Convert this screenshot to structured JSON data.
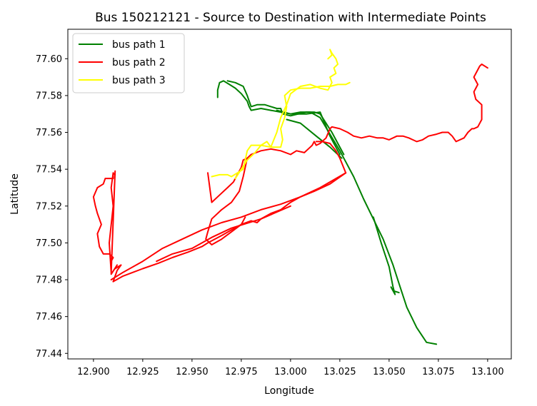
{
  "chart_data": {
    "type": "line",
    "title": "Bus 150212121 - Source to Destination with Intermediate Points",
    "xlabel": "Longitude",
    "ylabel": "Latitude",
    "xlim": [
      12.887,
      13.112
    ],
    "ylim": [
      77.437,
      77.616
    ],
    "xticks": [
      "12.900",
      "12.925",
      "12.950",
      "12.975",
      "13.000",
      "13.025",
      "13.050",
      "13.075",
      "13.100"
    ],
    "yticks": [
      "77.44",
      "77.46",
      "77.48",
      "77.50",
      "77.52",
      "77.54",
      "77.56",
      "77.58",
      "77.60"
    ],
    "legend": {
      "placement": "upper-left"
    },
    "grid": false,
    "series": [
      {
        "name": "bus path 1",
        "color": "#008000",
        "x": [
          12.963,
          12.963,
          12.964,
          12.966,
          12.969,
          12.972,
          12.975,
          12.978,
          12.979,
          12.98,
          12.985,
          12.99,
          12.995,
          13.0,
          13.005,
          13.01,
          13.015,
          13.02,
          13.025,
          13.028,
          13.032,
          13.037,
          13.042,
          13.047,
          13.052,
          13.055,
          13.059,
          13.064,
          13.069,
          13.074
        ],
        "y": [
          77.579,
          77.583,
          77.587,
          77.588,
          77.586,
          77.584,
          77.581,
          77.577,
          77.574,
          77.572,
          77.573,
          77.572,
          77.571,
          77.57,
          77.571,
          77.571,
          77.568,
          77.559,
          77.55,
          77.544,
          77.536,
          77.524,
          77.513,
          77.502,
          77.488,
          77.478,
          77.465,
          77.454,
          77.446,
          77.445
        ]
      },
      {
        "name": "bus path 1",
        "color": "#008000",
        "x": [
          12.968,
          12.972,
          12.976,
          12.978,
          12.98,
          12.983,
          12.985,
          12.987,
          12.99,
          12.993,
          12.995,
          12.996,
          13.0,
          13.004,
          13.008,
          13.012,
          13.015,
          13.021,
          13.027
        ],
        "y": [
          77.588,
          77.587,
          77.585,
          77.58,
          77.574,
          77.575,
          77.575,
          77.575,
          77.574,
          77.573,
          77.573,
          77.57,
          77.569,
          77.57,
          77.571,
          77.571,
          77.57,
          77.56,
          77.548
        ]
      },
      {
        "name": "bus path 1",
        "color": "#008000",
        "x": [
          12.993,
          13.0,
          13.008,
          13.015,
          13.02,
          13.025
        ],
        "y": [
          77.572,
          77.57,
          77.57,
          77.571,
          77.558,
          77.548
        ]
      },
      {
        "name": "bus path 1",
        "color": "#008000",
        "x": [
          13.042,
          13.046,
          13.05,
          13.052,
          13.053,
          13.051,
          13.052,
          13.055
        ],
        "y": [
          77.514,
          77.5,
          77.487,
          77.476,
          77.472,
          77.476,
          77.474,
          77.473
        ]
      },
      {
        "name": "bus path 1",
        "color": "#008000",
        "x": [
          12.998,
          13.005,
          13.013,
          13.02,
          13.026
        ],
        "y": [
          77.567,
          77.565,
          77.558,
          77.552,
          77.546
        ]
      },
      {
        "name": "bus path 2",
        "color": "#ff0000",
        "x": [
          13.1,
          13.097,
          13.096,
          13.093,
          13.095,
          13.093,
          13.094,
          13.097,
          13.097,
          13.095,
          13.093,
          13.092,
          13.09,
          13.088,
          13.084,
          13.082,
          13.08,
          13.077,
          13.074,
          13.07,
          13.067,
          13.064,
          13.062,
          13.06,
          13.057,
          13.054,
          13.05,
          13.047,
          13.044,
          13.04,
          13.036,
          13.032,
          13.029,
          13.025,
          13.021,
          13.02,
          13.018,
          13.015,
          13.013,
          13.012,
          13.011,
          13.01,
          13.007,
          13.003,
          13.0,
          12.995,
          12.99,
          12.985,
          12.98,
          12.978,
          12.976,
          12.975,
          12.973,
          12.971,
          12.968,
          12.964,
          12.96,
          12.958
        ],
        "y": [
          77.595,
          77.597,
          77.596,
          77.59,
          77.586,
          77.582,
          77.578,
          77.575,
          77.567,
          77.563,
          77.562,
          77.562,
          77.56,
          77.557,
          77.555,
          77.558,
          77.56,
          77.56,
          77.559,
          77.558,
          77.556,
          77.555,
          77.556,
          77.557,
          77.558,
          77.558,
          77.556,
          77.557,
          77.557,
          77.558,
          77.557,
          77.558,
          77.56,
          77.562,
          77.563,
          77.562,
          77.557,
          77.554,
          77.553,
          77.555,
          77.553,
          77.552,
          77.549,
          77.55,
          77.548,
          77.55,
          77.551,
          77.55,
          77.548,
          77.546,
          77.545,
          77.541,
          77.537,
          77.533,
          77.53,
          77.526,
          77.522,
          77.538
        ]
      },
      {
        "name": "bus path 2",
        "color": "#ff0000",
        "x": [
          12.978,
          12.976,
          12.974,
          12.97,
          12.965,
          12.96,
          12.958,
          12.957,
          12.96,
          12.965,
          12.97,
          12.975,
          12.977
        ],
        "y": [
          77.546,
          77.536,
          77.528,
          77.522,
          77.518,
          77.513,
          77.506,
          77.502,
          77.499,
          77.502,
          77.506,
          77.51,
          77.514
        ]
      },
      {
        "name": "bus path 2",
        "color": "#ff0000",
        "x": [
          13.013,
          13.016,
          13.02,
          13.023,
          13.025,
          13.028
        ],
        "y": [
          77.555,
          77.555,
          77.554,
          77.55,
          77.546,
          77.538
        ]
      },
      {
        "name": "bus path 2",
        "color": "#ff0000",
        "x": [
          13.028,
          13.02,
          13.012,
          13.005,
          13.0,
          12.995,
          12.99,
          12.985,
          12.983,
          12.98,
          12.975,
          12.97,
          12.965,
          12.958,
          12.955,
          12.948,
          12.94,
          12.933,
          12.925,
          12.915,
          12.91
        ],
        "y": [
          77.538,
          77.532,
          77.528,
          77.525,
          77.522,
          77.518,
          77.516,
          77.513,
          77.511,
          77.512,
          77.51,
          77.507,
          77.504,
          77.5,
          77.498,
          77.495,
          77.492,
          77.489,
          77.486,
          77.482,
          77.479
        ]
      },
      {
        "name": "bus path 2",
        "color": "#ff0000",
        "x": [
          13.028,
          13.015,
          13.005,
          12.995,
          12.985,
          12.975,
          12.965,
          12.955,
          12.945,
          12.935,
          12.925,
          12.915,
          12.909
        ],
        "y": [
          77.538,
          77.53,
          77.525,
          77.521,
          77.518,
          77.514,
          77.511,
          77.507,
          77.502,
          77.497,
          77.49,
          77.484,
          77.48
        ]
      },
      {
        "name": "bus path 2",
        "color": "#ff0000",
        "x": [
          12.932,
          12.94,
          12.95,
          12.96,
          12.97,
          12.985,
          13.0
        ],
        "y": [
          77.49,
          77.494,
          77.497,
          77.503,
          77.508,
          77.513,
          77.52
        ]
      },
      {
        "name": "bus path 2",
        "color": "#ff0000",
        "x": [
          12.91,
          12.912,
          12.914,
          12.911,
          12.912,
          12.909,
          12.909,
          12.91,
          12.908,
          12.905,
          12.903,
          12.902,
          12.904,
          12.902,
          12.901,
          12.9,
          12.902,
          12.905,
          12.906,
          12.91,
          12.91,
          12.911,
          12.91,
          12.909,
          12.91,
          12.908,
          12.909,
          12.911
        ],
        "y": [
          77.479,
          77.485,
          77.488,
          77.486,
          77.488,
          77.483,
          77.49,
          77.492,
          77.494,
          77.494,
          77.498,
          77.505,
          77.51,
          77.516,
          77.52,
          77.525,
          77.53,
          77.532,
          77.535,
          77.535,
          77.538,
          77.537,
          77.538,
          77.53,
          77.52,
          77.5,
          77.484,
          77.539
        ]
      },
      {
        "name": "bus path 3",
        "color": "#ffff00",
        "x": [
          12.96,
          12.964,
          12.968,
          12.97,
          12.973,
          12.976,
          12.977,
          12.978,
          12.98,
          12.985,
          12.99,
          12.995,
          12.996,
          12.995,
          12.997,
          12.998,
          12.997,
          13.0,
          13.005,
          13.01,
          13.015,
          13.02,
          13.024,
          13.028,
          13.03
        ],
        "y": [
          77.536,
          77.537,
          77.537,
          77.536,
          77.538,
          77.54,
          77.545,
          77.55,
          77.553,
          77.553,
          77.552,
          77.552,
          77.556,
          77.562,
          77.568,
          77.574,
          77.58,
          77.583,
          77.584,
          77.584,
          77.585,
          77.585,
          77.586,
          77.586,
          77.587
        ]
      },
      {
        "name": "bus path 3",
        "color": "#ffff00",
        "x": [
          12.972,
          12.975,
          12.978,
          12.982,
          12.985,
          12.988,
          12.99,
          12.993,
          12.995,
          12.998,
          13.0,
          13.005,
          13.01,
          13.015,
          13.019,
          13.021,
          13.02,
          13.023,
          13.022,
          13.024,
          13.023,
          13.021,
          13.02,
          13.021,
          13.019
        ],
        "y": [
          77.535,
          77.54,
          77.545,
          77.549,
          77.553,
          77.555,
          77.552,
          77.56,
          77.568,
          77.575,
          77.581,
          77.585,
          77.586,
          77.584,
          77.583,
          77.587,
          77.59,
          77.592,
          77.595,
          77.597,
          77.6,
          77.603,
          77.605,
          77.602,
          77.6
        ]
      }
    ]
  }
}
